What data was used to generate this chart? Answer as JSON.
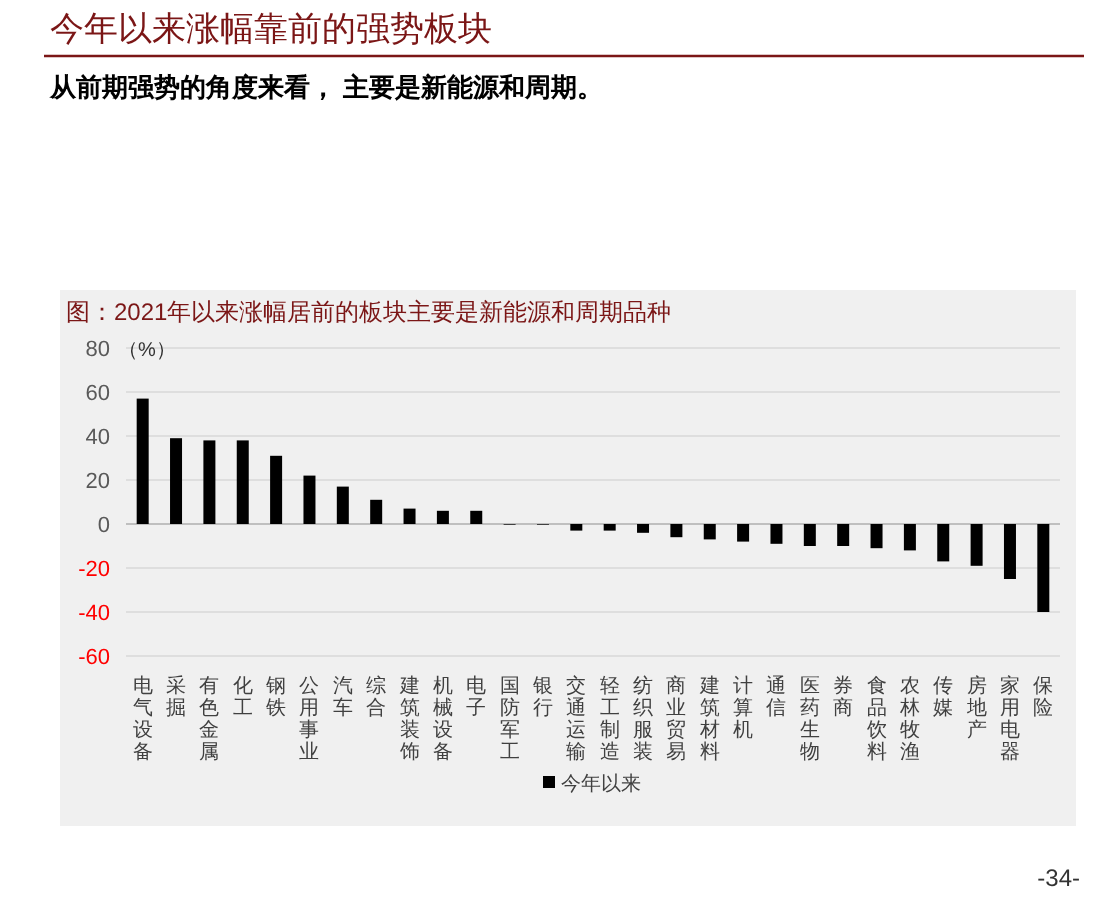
{
  "chart_data": {
    "type": "bar",
    "title": "今年以来涨幅靠前的强势板块",
    "subtitle": "从前期强势的角度来看， 主要是新能源和周期。",
    "annotations": [
      "图：2021年以来涨幅居前的板块主要是新能源和周期品种",
      "-34-"
    ],
    "ylabel": "（%）",
    "categories": [
      "电气设备",
      "采掘",
      "有色金属",
      "化工",
      "钢铁",
      "公用事业",
      "汽车",
      "综合",
      "建筑装饰",
      "机械设备",
      "电子",
      "国防军工",
      "银行",
      "交通运输",
      "轻工制造",
      "纺织服装",
      "商业贸易",
      "建筑材料",
      "计算机",
      "通信",
      "医药生物",
      "券商",
      "食品饮料",
      "农林牧渔",
      "传媒",
      "房地产",
      "家用电器",
      "保险"
    ],
    "series": [
      {
        "name": "今年以来",
        "color": "#000000",
        "values": [
          57,
          39,
          38,
          38,
          31,
          22,
          17,
          11,
          7,
          6,
          6,
          -0.3,
          -0.3,
          -3,
          -3,
          -4,
          -6,
          -7,
          -8,
          -9,
          -10,
          -10,
          -11,
          -12,
          -17,
          -19,
          -25,
          -40
        ]
      }
    ],
    "ylim": [
      -60,
      80
    ],
    "yticks": [
      -60,
      -40,
      -20,
      0,
      20,
      40,
      60,
      80
    ],
    "grid": "y",
    "legend": "bottom"
  }
}
